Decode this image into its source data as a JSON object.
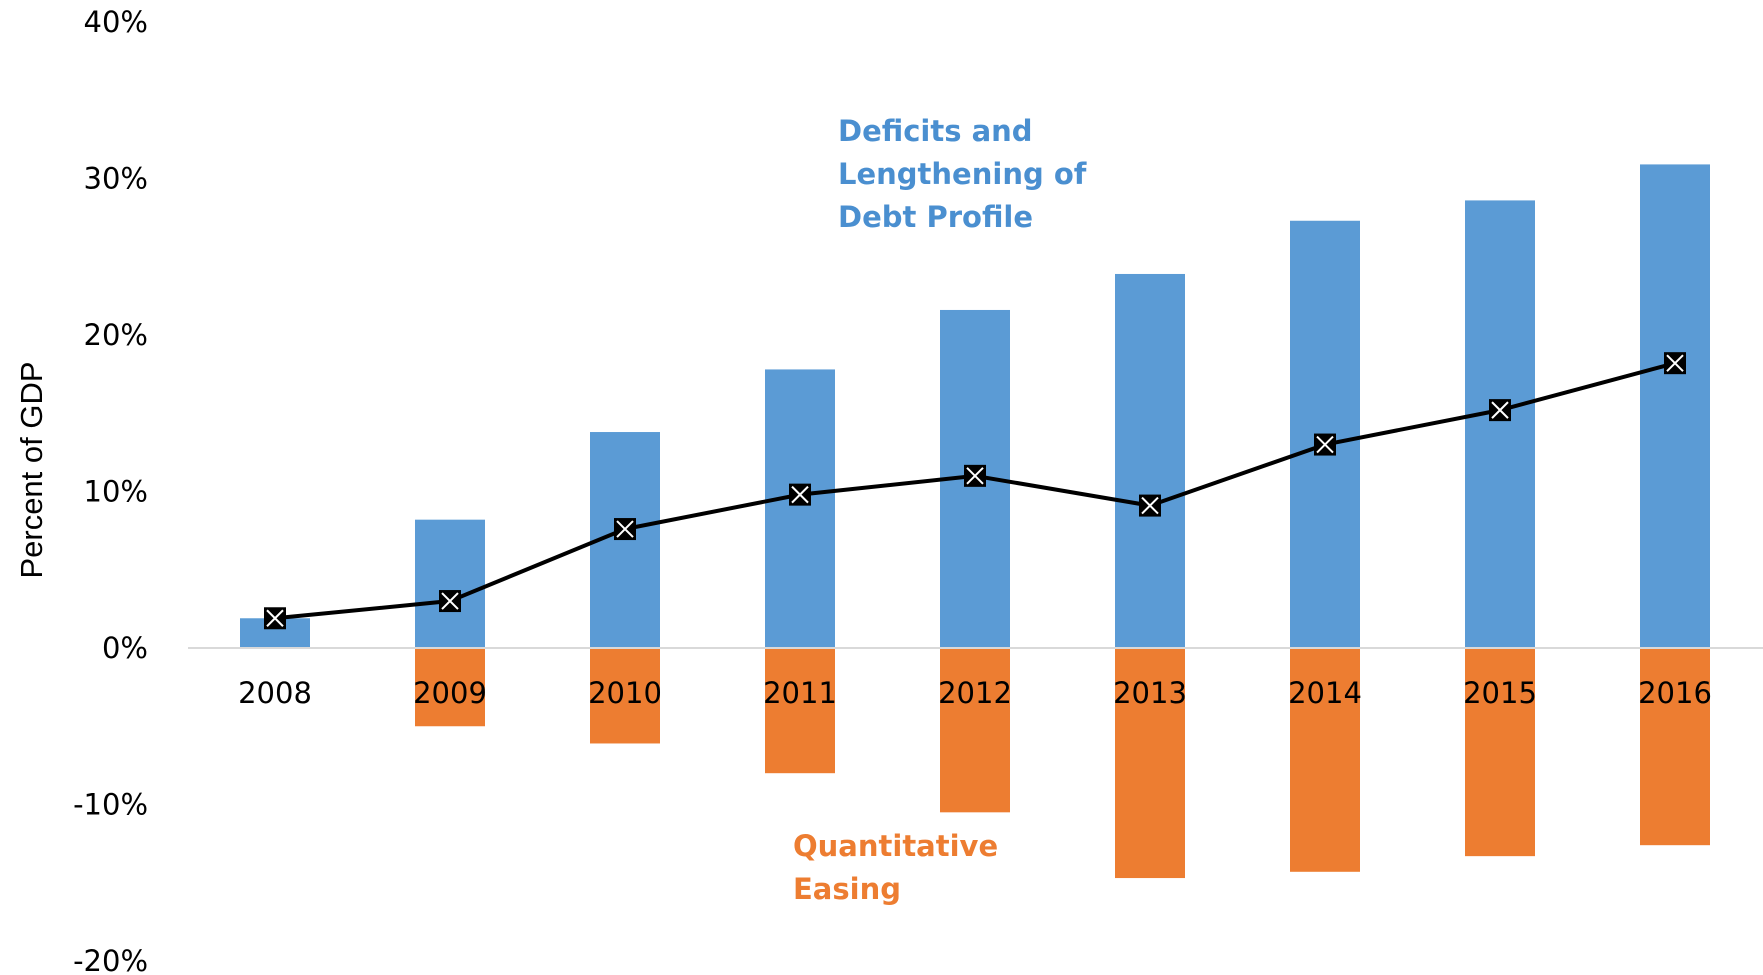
{
  "chart_data": {
    "type": "bar",
    "ylabel": "Percent of GDP",
    "ylim": [
      -20,
      40
    ],
    "yticks": [
      -20,
      -10,
      0,
      10,
      20,
      30,
      40
    ],
    "ytick_labels": [
      "-20%",
      "-10%",
      "0%",
      "10%",
      "20%",
      "30%",
      "40%"
    ],
    "categories": [
      "2008",
      "2009",
      "2010",
      "2011",
      "2012",
      "2013",
      "2014",
      "2015",
      "2016"
    ],
    "stacked": true,
    "legend": "none",
    "grid": false,
    "series": [
      {
        "name": "Deficits and Lengthening of Debt Profile",
        "type": "bar",
        "color": "#5B9BD5",
        "values": [
          1.9,
          8.2,
          13.8,
          17.8,
          21.6,
          23.9,
          27.3,
          28.6,
          30.9
        ]
      },
      {
        "name": "Quantitative Easing",
        "type": "bar",
        "color": "#ED7D31",
        "values": [
          0.0,
          -5.0,
          -6.1,
          -8.0,
          -10.5,
          -14.7,
          -14.3,
          -13.3,
          -12.6
        ]
      },
      {
        "name": "",
        "type": "line",
        "color": "#000000",
        "marker": "square-x",
        "values": [
          1.9,
          3.0,
          7.6,
          9.8,
          11.0,
          9.1,
          13.0,
          15.2,
          18.2
        ]
      }
    ],
    "annotations": [
      {
        "text_lines": [
          "Deficits and",
          "Lengthening  of",
          "Debt Profile"
        ],
        "color": "#4A8FD0"
      },
      {
        "text_lines": [
          "Quantitative",
          "Easing"
        ],
        "color": "#ED7D31"
      }
    ]
  }
}
